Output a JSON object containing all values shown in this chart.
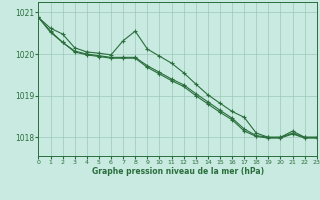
{
  "xlabel": "Graphe pression niveau de la mer (hPa)",
  "background_color": "#c8eae0",
  "grid_color": "#9dc8b8",
  "line_color": "#2a6e3c",
  "ylim": [
    1017.55,
    1021.25
  ],
  "xlim": [
    0,
    23
  ],
  "yticks": [
    1018,
    1019,
    1020,
    1021
  ],
  "xticks": [
    0,
    1,
    2,
    3,
    4,
    5,
    6,
    7,
    8,
    9,
    10,
    11,
    12,
    13,
    14,
    15,
    16,
    17,
    18,
    19,
    20,
    21,
    22,
    23
  ],
  "series1_x": [
    0,
    1,
    2,
    3,
    4,
    5,
    6,
    7,
    8,
    9,
    10,
    11,
    12,
    13,
    14,
    15,
    16,
    17,
    18,
    19,
    20,
    21,
    22,
    23
  ],
  "series1_y": [
    1020.88,
    1020.62,
    1020.48,
    1020.15,
    1020.05,
    1020.02,
    1019.98,
    1020.32,
    1020.55,
    1020.12,
    1019.95,
    1019.78,
    1019.55,
    1019.28,
    1019.02,
    1018.82,
    1018.62,
    1018.48,
    1018.1,
    1018.0,
    1018.0,
    1018.15,
    1018.0,
    1018.0
  ],
  "series2_x": [
    0,
    1,
    2,
    3,
    4,
    5,
    6,
    7,
    8,
    9,
    10,
    11,
    12,
    13,
    14,
    15,
    16,
    17,
    18,
    19,
    20,
    21,
    22,
    23
  ],
  "series2_y": [
    1020.88,
    1020.55,
    1020.28,
    1020.05,
    1019.98,
    1019.94,
    1019.9,
    1019.9,
    1019.9,
    1019.68,
    1019.52,
    1019.36,
    1019.22,
    1019.0,
    1018.8,
    1018.6,
    1018.42,
    1018.15,
    1018.02,
    1017.98,
    1017.98,
    1018.08,
    1017.98,
    1017.98
  ],
  "series3_x": [
    0,
    1,
    2,
    3,
    4,
    5,
    6,
    7,
    8,
    9,
    10,
    11,
    12,
    13,
    14,
    15,
    16,
    17,
    18,
    19,
    20,
    21,
    22,
    23
  ],
  "series3_y": [
    1020.88,
    1020.52,
    1020.28,
    1020.07,
    1020.0,
    1019.96,
    1019.92,
    1019.92,
    1019.92,
    1019.72,
    1019.56,
    1019.4,
    1019.26,
    1019.05,
    1018.85,
    1018.65,
    1018.46,
    1018.2,
    1018.04,
    1018.0,
    1018.0,
    1018.1,
    1018.0,
    1018.0
  ]
}
